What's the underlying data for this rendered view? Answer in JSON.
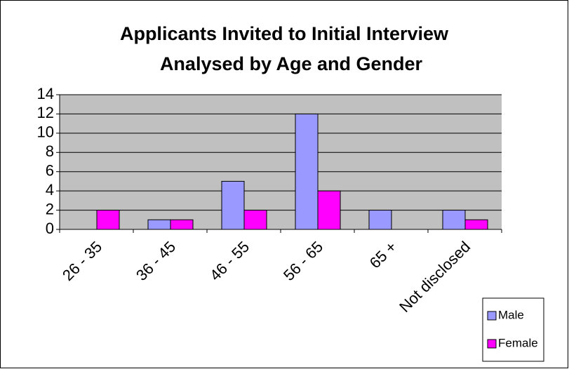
{
  "chart_data": {
    "type": "bar",
    "title": [
      "Applicants Invited to Initial Interview",
      "Analysed by Age and Gender"
    ],
    "categories": [
      "26 - 35",
      "36 - 45",
      "46 - 55",
      "56 - 65",
      "65 +",
      "Not disclosed"
    ],
    "series": [
      {
        "name": "Male",
        "color": "#9999ff",
        "values": [
          0,
          1,
          5,
          12,
          2,
          2
        ]
      },
      {
        "name": "Female",
        "color": "#ff00ff",
        "values": [
          2,
          1,
          2,
          4,
          0,
          1
        ]
      }
    ],
    "ylim": [
      0,
      14
    ],
    "yticks": [
      0,
      2,
      4,
      6,
      8,
      10,
      12,
      14
    ],
    "grid": true,
    "plot_background": "#c0c0c0",
    "legend": "bottom-right"
  }
}
